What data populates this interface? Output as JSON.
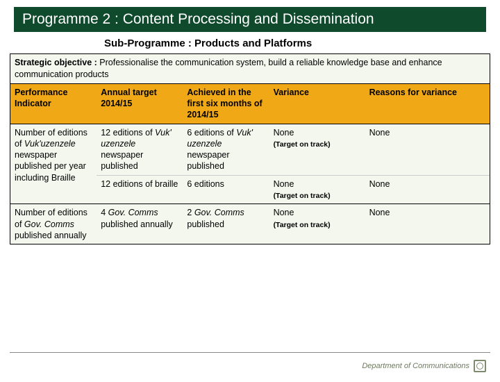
{
  "colors": {
    "title_bg": "#0f4a2c",
    "title_fg": "#ffffff",
    "header_bg": "#f0a817",
    "row_bg": "#f4f7ee",
    "objective_bg": "#f4f7ee"
  },
  "title": "Programme 2 : Content Processing and Dissemination",
  "subtitle": "Sub-Programme : Products and Platforms",
  "objective": {
    "label": "Strategic objective :",
    "text": " Professionalise the communication system, build a reliable knowledge base and enhance communication products"
  },
  "columns": [
    "Performance Indicator",
    "Annual target 2014/15",
    "Achieved in the first six months of 2014/15",
    "Variance",
    "Reasons for variance"
  ],
  "rows": [
    {
      "c0_html": "Number of editions of <span class=\"it\">Vuk'uzenzele</span> newspaper published per year including Braille",
      "c1_html": "12 editions of <span class=\"it\">Vuk' uzenzele</span> newspaper published",
      "c2_html": "6 editions of <span class=\"it\">Vuk' uzenzele</span> newspaper published",
      "c3_html": "None<br><span class=\"sub\">(Target on track)</span>",
      "c4_html": "None",
      "rowspan0": 2
    },
    {
      "c1_html": "12 editions of braille",
      "c2_html": "6 editions",
      "c3_html": "None<br><span class=\"sub\">(Target on track)</span>",
      "c4_html": "None"
    },
    {
      "sep": true,
      "c0_html": "Number of editions of <span class=\"it\">Gov. Comms</span> published annually",
      "c1_html": "4 <span class=\"it\">Gov. Comms</span> published annually",
      "c2_html": "2 <span class=\"it\">Gov. Comms</span> published",
      "c3_html": "None<br><span class=\"sub\">(Target on track)</span>",
      "c4_html": "None"
    }
  ],
  "footer": {
    "text": "Department of Communications"
  }
}
